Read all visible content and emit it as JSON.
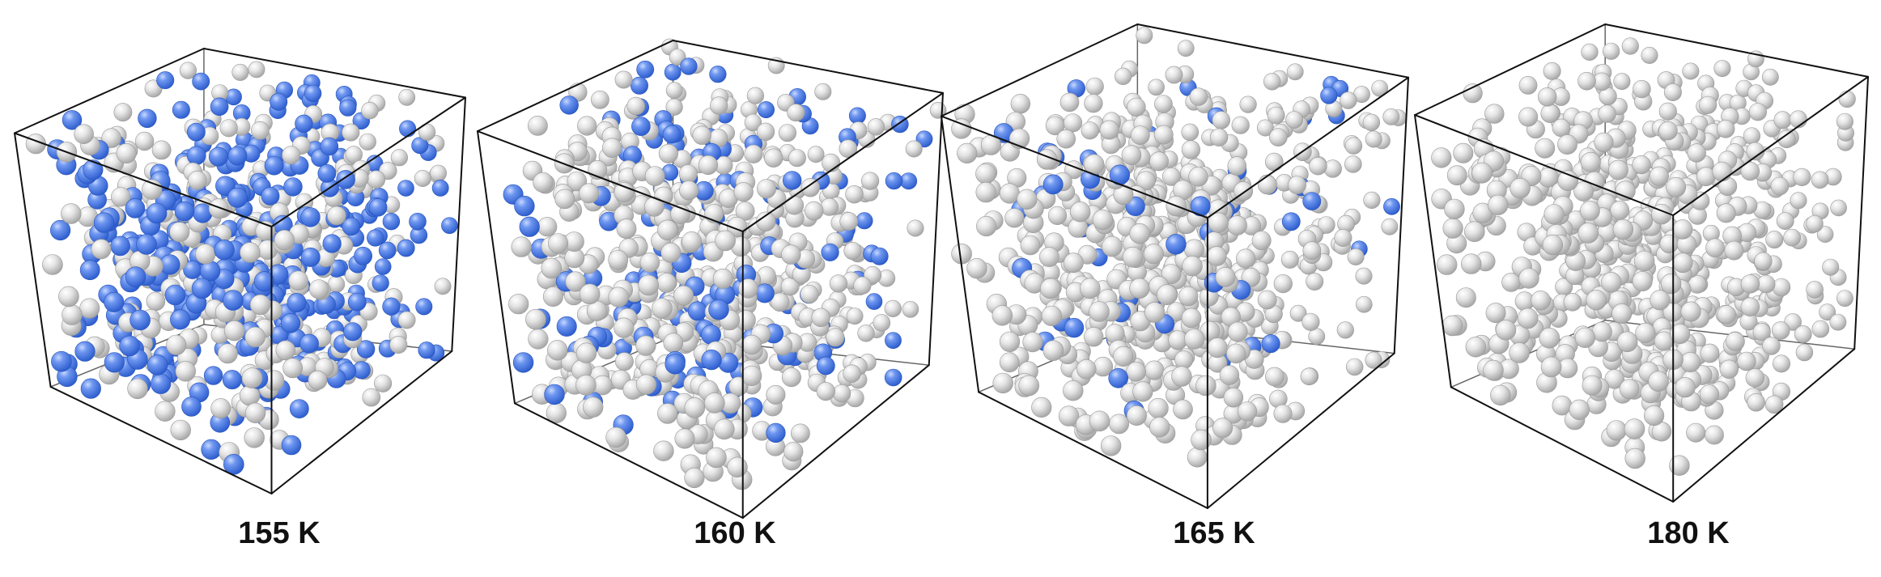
{
  "figure": {
    "panels": [
      {
        "label": "155 K",
        "blue_fraction": 0.55
      },
      {
        "label": "160 K",
        "blue_fraction": 0.28
      },
      {
        "label": "165 K",
        "blue_fraction": 0.09
      },
      {
        "label": "180 K",
        "blue_fraction": 0.0
      }
    ],
    "colors": {
      "blue_particle": "#4f7fe6",
      "white_particle": "#e6e6e6",
      "box_edge": "#111111",
      "label_text": "#111111"
    }
  }
}
